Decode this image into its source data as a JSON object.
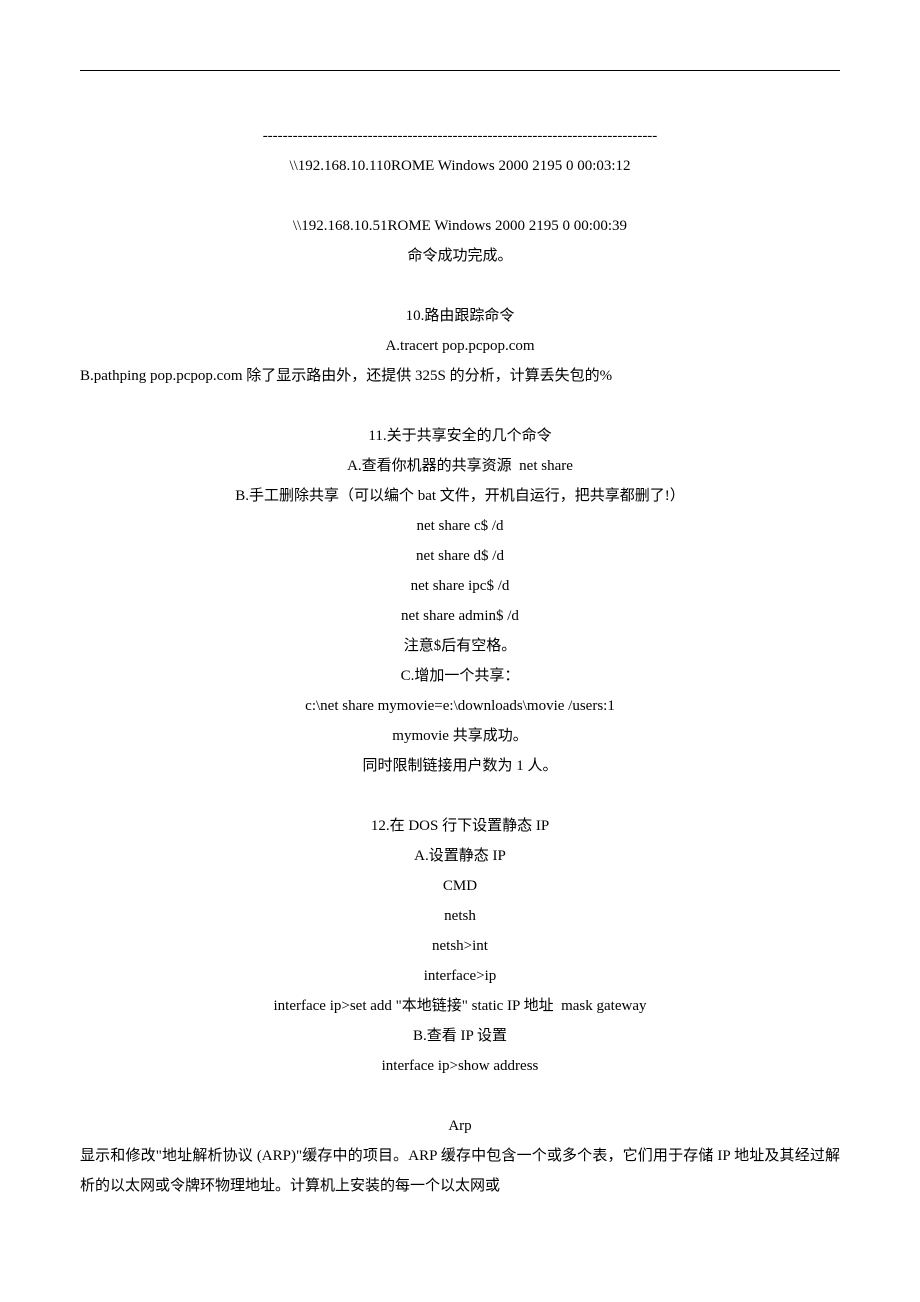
{
  "lines": {
    "dashes": "-------------------------------------------------------------------------------",
    "l1": "\\\\192.168.10.110ROME Windows 2000 2195 0 00:03:12",
    "l2": "\\\\192.168.10.51ROME Windows 2000 2195 0 00:00:39",
    "l3": "命令成功完成。",
    "l4": "10.路由跟踪命令",
    "l5": "A.tracert pop.pcpop.com",
    "l6": "B.pathping pop.pcpop.com 除了显示路由外，还提供 325S 的分析，计算丢失包的%",
    "l7": "11.关于共享安全的几个命令",
    "l8": "A.查看你机器的共享资源  net share",
    "l9": "B.手工删除共享（可以编个 bat 文件，开机自运行，把共享都删了!）",
    "l10": "net share c$ /d",
    "l11": "net share d$ /d",
    "l12": "net share ipc$ /d",
    "l13": "net share admin$ /d",
    "l14": "注意$后有空格。",
    "l15": "C.增加一个共享：",
    "l16": "c:\\net share mymovie=e:\\downloads\\movie /users:1",
    "l17": "mymovie 共享成功。",
    "l18": "同时限制链接用户数为 1 人。",
    "l19": "12.在 DOS 行下设置静态 IP",
    "l20": "A.设置静态 IP",
    "l21": "CMD",
    "l22": "netsh",
    "l23": "netsh>int",
    "l24": "interface>ip",
    "l25": "interface ip>set add \"本地链接\" static IP 地址  mask gateway",
    "l26": "B.查看 IP 设置",
    "l27": "interface ip>show address",
    "l28": "Arp",
    "l29": "显示和修改\"地址解析协议 (ARP)\"缓存中的项目。ARP 缓存中包含一个或多个表，它们用于存储 IP 地址及其经过解析的以太网或令牌环物理地址。计算机上安装的每一个以太网或"
  }
}
